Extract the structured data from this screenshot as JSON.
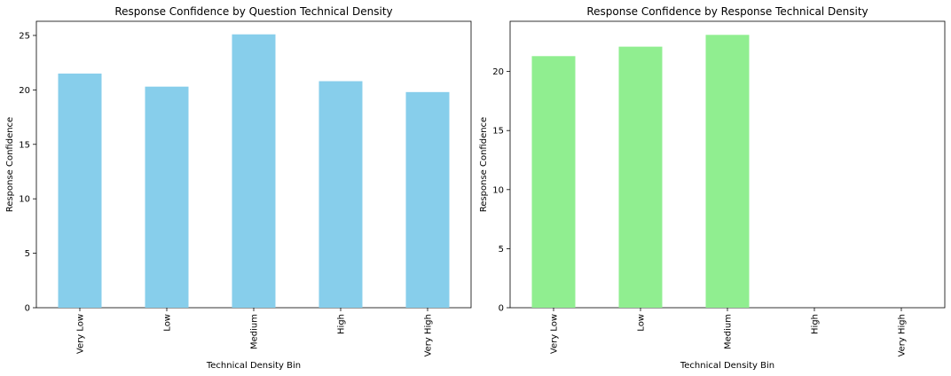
{
  "chart_data": [
    {
      "type": "bar",
      "title": "Response Confidence by Question Technical Density",
      "xlabel": "Technical Density Bin",
      "ylabel": "Response Confidence",
      "categories": [
        "Very Low",
        "Low",
        "Medium",
        "High",
        "Very High"
      ],
      "values": [
        21.5,
        20.3,
        25.1,
        20.8,
        19.8
      ],
      "ylim": [
        0,
        26.3
      ],
      "yticks": [
        "0",
        "5",
        "10",
        "15",
        "20",
        "25"
      ],
      "color": "#87ceeb",
      "grid": false,
      "legend": "none"
    },
    {
      "type": "bar",
      "title": "Response Confidence by Response Technical Density",
      "xlabel": "Technical Density Bin",
      "ylabel": "Response Confidence",
      "categories": [
        "Very Low",
        "Low",
        "Medium",
        "High",
        "Very High"
      ],
      "values": [
        21.3,
        22.1,
        23.1,
        null,
        null
      ],
      "ylim": [
        0,
        24.25
      ],
      "yticks": [
        "0",
        "5",
        "10",
        "15",
        "20"
      ],
      "color": "#90ee90",
      "grid": false,
      "legend": "none"
    }
  ]
}
